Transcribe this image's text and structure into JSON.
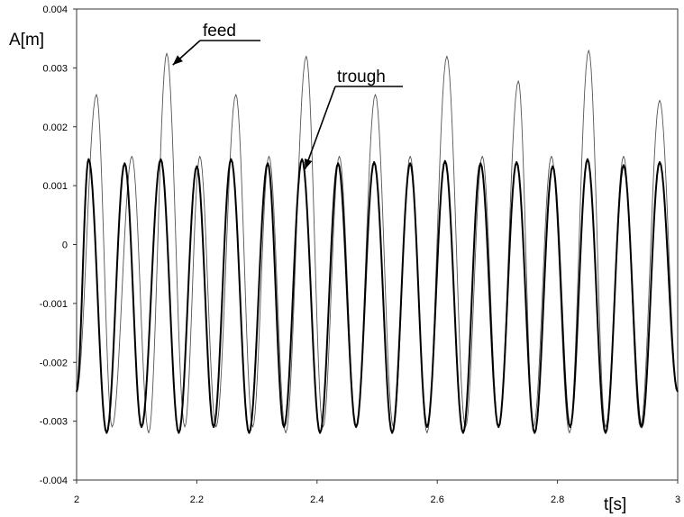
{
  "chart_data": {
    "type": "line",
    "title": "",
    "xlabel": "t[s]",
    "ylabel": "A[m]",
    "xlim": [
      2,
      3
    ],
    "ylim": [
      -0.004,
      0.004
    ],
    "x_ticks": [
      "2",
      "2.2",
      "2.4",
      "2.6",
      "2.8",
      "3"
    ],
    "y_ticks": [
      "0.004",
      "0.003",
      "0.002",
      "0.001",
      "0",
      "-0.001",
      "-0.002",
      "-0.003",
      "-0.004"
    ],
    "grid": false,
    "annotations": [
      {
        "text": "feed",
        "target": [
          2.16,
          0.00305
        ]
      },
      {
        "text": "trough",
        "target": [
          2.38,
          0.00128
        ]
      }
    ],
    "series": [
      {
        "name": "feed",
        "color": "#555555",
        "x": [
          2.0,
          2.033,
          2.059,
          2.092,
          2.12,
          2.15,
          2.18,
          2.205,
          2.232,
          2.265,
          2.293,
          2.32,
          2.348,
          2.382,
          2.41,
          2.437,
          2.465,
          2.497,
          2.527,
          2.555,
          2.583,
          2.616,
          2.647,
          2.675,
          2.702,
          2.735,
          2.76,
          2.79,
          2.82,
          2.852,
          2.88,
          2.91,
          2.938,
          2.97,
          3.0
        ],
        "y": [
          -0.0025,
          0.00255,
          -0.0031,
          0.0015,
          -0.0032,
          0.00325,
          -0.0031,
          0.0015,
          -0.0031,
          0.00255,
          -0.0031,
          0.0015,
          -0.0032,
          0.0032,
          -0.0031,
          0.0015,
          -0.0031,
          0.00255,
          -0.0031,
          0.0015,
          -0.0032,
          0.0032,
          -0.0031,
          0.0015,
          -0.0031,
          0.00278,
          -0.0031,
          0.0015,
          -0.0032,
          0.0033,
          -0.0031,
          0.0015,
          -0.0031,
          0.00245,
          -0.0025
        ]
      },
      {
        "name": "trough",
        "color": "#000000",
        "x": [
          2.0,
          2.02,
          2.05,
          2.08,
          2.108,
          2.14,
          2.17,
          2.2,
          2.228,
          2.257,
          2.287,
          2.318,
          2.345,
          2.375,
          2.405,
          2.435,
          2.465,
          2.495,
          2.525,
          2.555,
          2.583,
          2.613,
          2.643,
          2.672,
          2.702,
          2.732,
          2.762,
          2.792,
          2.821,
          2.85,
          2.88,
          2.91,
          2.94,
          2.97,
          3.0
        ],
        "y": [
          -0.0025,
          0.00145,
          -0.0032,
          0.00138,
          -0.0031,
          0.00145,
          -0.0032,
          0.00133,
          -0.0031,
          0.00145,
          -0.0032,
          0.00138,
          -0.0031,
          0.00145,
          -0.0032,
          0.00138,
          -0.0031,
          0.0014,
          -0.0032,
          0.00138,
          -0.0031,
          0.00142,
          -0.0032,
          0.00138,
          -0.0031,
          0.0014,
          -0.0032,
          0.00133,
          -0.0031,
          0.00145,
          -0.0032,
          0.00135,
          -0.0031,
          0.0014,
          -0.0025
        ]
      }
    ]
  }
}
